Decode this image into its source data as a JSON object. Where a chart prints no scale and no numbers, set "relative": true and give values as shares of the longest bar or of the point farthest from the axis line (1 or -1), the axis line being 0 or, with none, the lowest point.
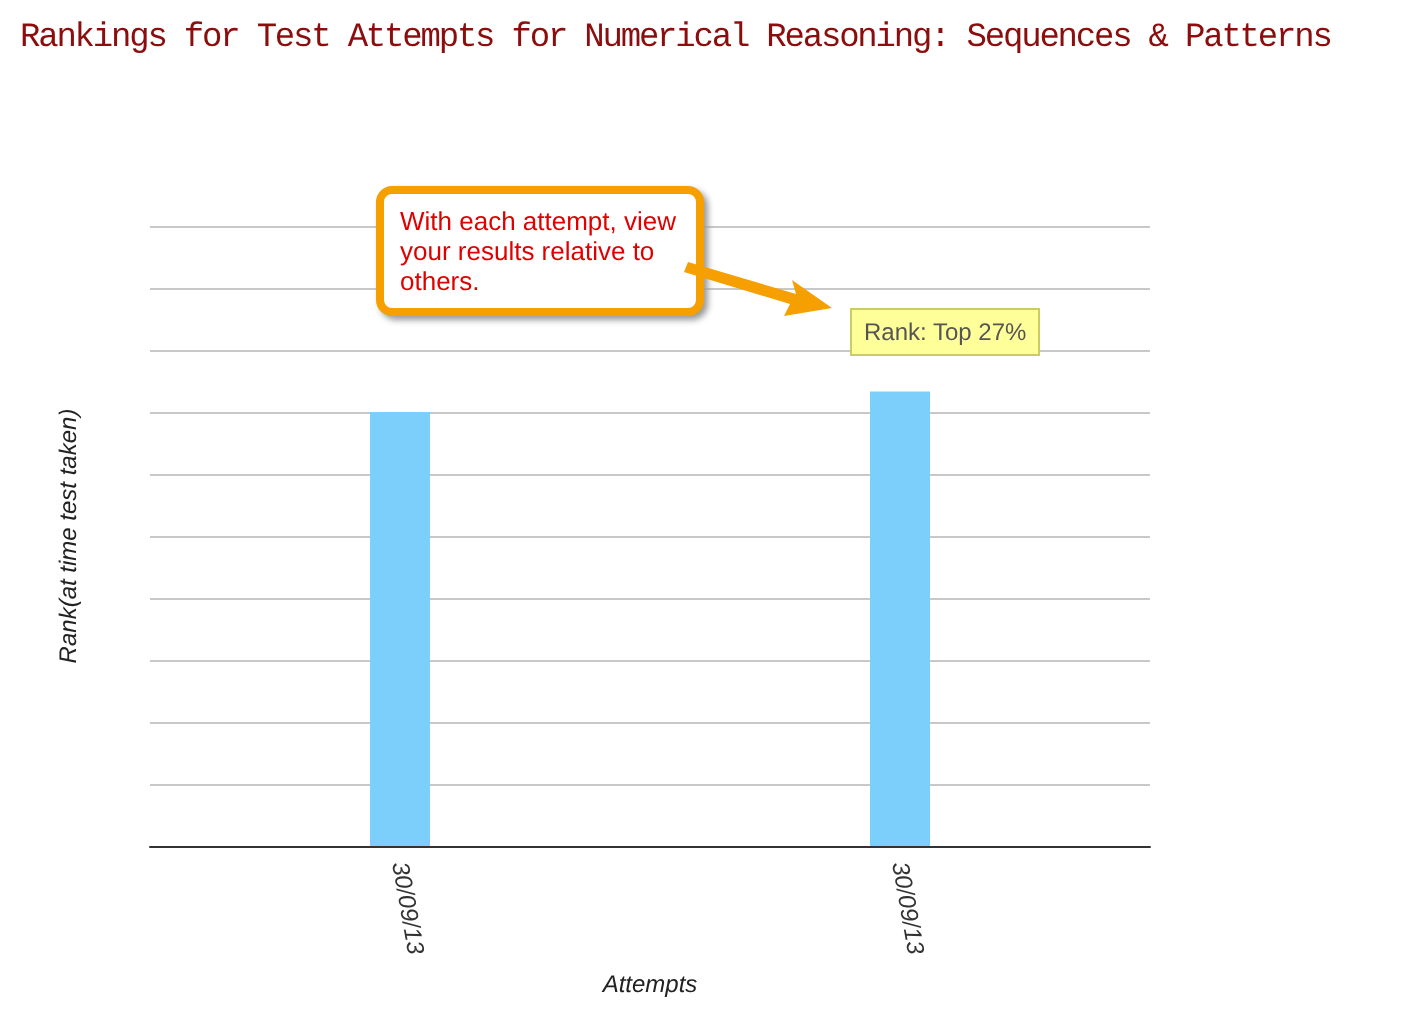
{
  "chart_data": {
    "type": "bar",
    "title": "Rankings for Test Attempts for Numerical Reasoning: Sequences & Patterns",
    "xlabel": "Attempts",
    "ylabel": "Rank(at time test taken)",
    "categories": [
      "30/09/13",
      "30/09/13"
    ],
    "values": [
      0.955,
      1
    ],
    "color": "#7ccffa",
    "relative": true,
    "grid": "y",
    "annotations": [
      "With each attempt, view your results relative to others.",
      "Rank: Top 27%"
    ]
  }
}
